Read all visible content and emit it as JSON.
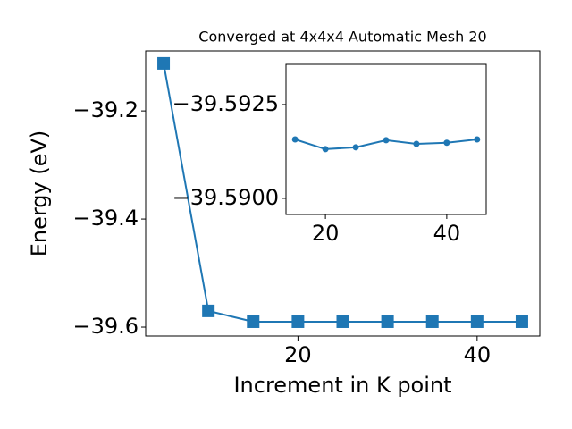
{
  "chart_data": [
    {
      "type": "line",
      "title": "Converged at 4x4x4 Automatic Mesh 20",
      "xlabel": "Increment in K point",
      "ylabel": "Energy (eV)",
      "x": [
        5,
        10,
        15,
        20,
        25,
        30,
        35,
        40,
        45
      ],
      "series": [
        {
          "color": "#1f77b4",
          "marker": "square",
          "values": [
            -39.112,
            -39.57,
            -39.59,
            -39.59,
            -39.59,
            -39.59,
            -39.59,
            -39.59,
            -39.59
          ]
        }
      ],
      "xlim": [
        3,
        47
      ],
      "xticks": [
        20,
        40
      ],
      "ylim": [
        -39.6165,
        -39.089
      ],
      "yticks": [
        {
          "value": -39.2,
          "label": "−39.2"
        },
        {
          "value": -39.4,
          "label": "−39.4"
        },
        {
          "value": -39.6,
          "label": "−39.6"
        }
      ]
    },
    {
      "type": "line",
      "x": [
        15,
        20,
        25,
        30,
        35,
        40,
        45
      ],
      "series": [
        {
          "color": "#1f77b4",
          "marker": "circle",
          "values": [
            -39.59157,
            -39.59131,
            -39.59136,
            -39.59155,
            -39.59145,
            -39.59148,
            -39.59157
          ]
        }
      ],
      "xlim": [
        13.5,
        46.5
      ],
      "xticks": [
        20,
        40
      ],
      "ylim": [
        -39.58957,
        -39.59357
      ],
      "yticks": [
        {
          "value": -39.5925,
          "label": "−39.5925"
        },
        {
          "value": -39.59,
          "label": "−39.5900"
        }
      ]
    }
  ]
}
